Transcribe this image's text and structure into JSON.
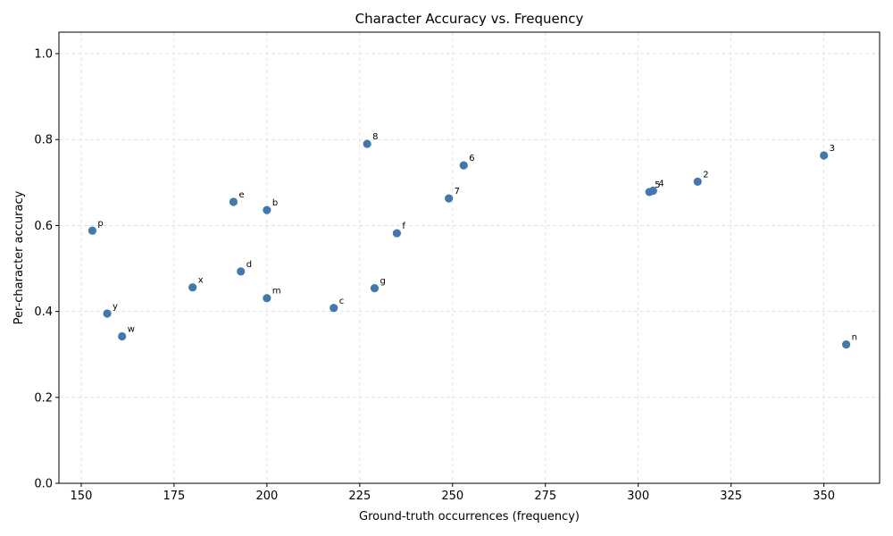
{
  "chart_data": {
    "type": "scatter",
    "title": "Character Accuracy vs. Frequency",
    "xlabel": "Ground-truth occurrences (frequency)",
    "ylabel": "Per-character accuracy",
    "xlim": [
      144,
      365
    ],
    "ylim": [
      0,
      1.05
    ],
    "x_ticks": [
      150,
      175,
      200,
      225,
      250,
      275,
      300,
      325,
      350
    ],
    "y_ticks": [
      0.0,
      0.2,
      0.4,
      0.6,
      0.8,
      1.0
    ],
    "x_tick_labels": [
      "150",
      "175",
      "200",
      "225",
      "250",
      "275",
      "300",
      "325",
      "350"
    ],
    "y_tick_labels": [
      "0.0",
      "0.2",
      "0.4",
      "0.6",
      "0.8",
      "1.0"
    ],
    "grid": true,
    "point_color": "#4478ad",
    "points": [
      {
        "label": "p",
        "x": 153,
        "y": 0.588
      },
      {
        "label": "y",
        "x": 157,
        "y": 0.395
      },
      {
        "label": "w",
        "x": 161,
        "y": 0.342
      },
      {
        "label": "x",
        "x": 180,
        "y": 0.456
      },
      {
        "label": "e",
        "x": 191,
        "y": 0.655
      },
      {
        "label": "d",
        "x": 193,
        "y": 0.493
      },
      {
        "label": "b",
        "x": 200,
        "y": 0.636
      },
      {
        "label": "m",
        "x": 200,
        "y": 0.431
      },
      {
        "label": "c",
        "x": 218,
        "y": 0.408
      },
      {
        "label": "8",
        "x": 227,
        "y": 0.79
      },
      {
        "label": "g",
        "x": 229,
        "y": 0.454
      },
      {
        "label": "f",
        "x": 235,
        "y": 0.582
      },
      {
        "label": "7",
        "x": 249,
        "y": 0.663
      },
      {
        "label": "6",
        "x": 253,
        "y": 0.74
      },
      {
        "label": "5",
        "x": 303,
        "y": 0.678
      },
      {
        "label": "4",
        "x": 304,
        "y": 0.681
      },
      {
        "label": "2",
        "x": 316,
        "y": 0.702
      },
      {
        "label": "3",
        "x": 350,
        "y": 0.763
      },
      {
        "label": "n",
        "x": 356,
        "y": 0.323
      }
    ]
  }
}
